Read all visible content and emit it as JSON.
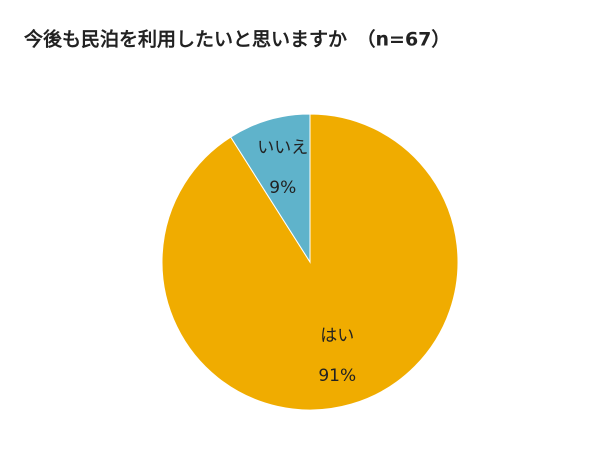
{
  "chart_data": {
    "type": "pie",
    "title": "今後も民泊を利用したいと思いますか　（n=67）",
    "categories": [
      "はい",
      "いいえ"
    ],
    "values": [
      91,
      9
    ],
    "value_labels": [
      "91%",
      "9%"
    ],
    "colors": [
      "#f0ac00",
      "#5fb3cb"
    ]
  }
}
